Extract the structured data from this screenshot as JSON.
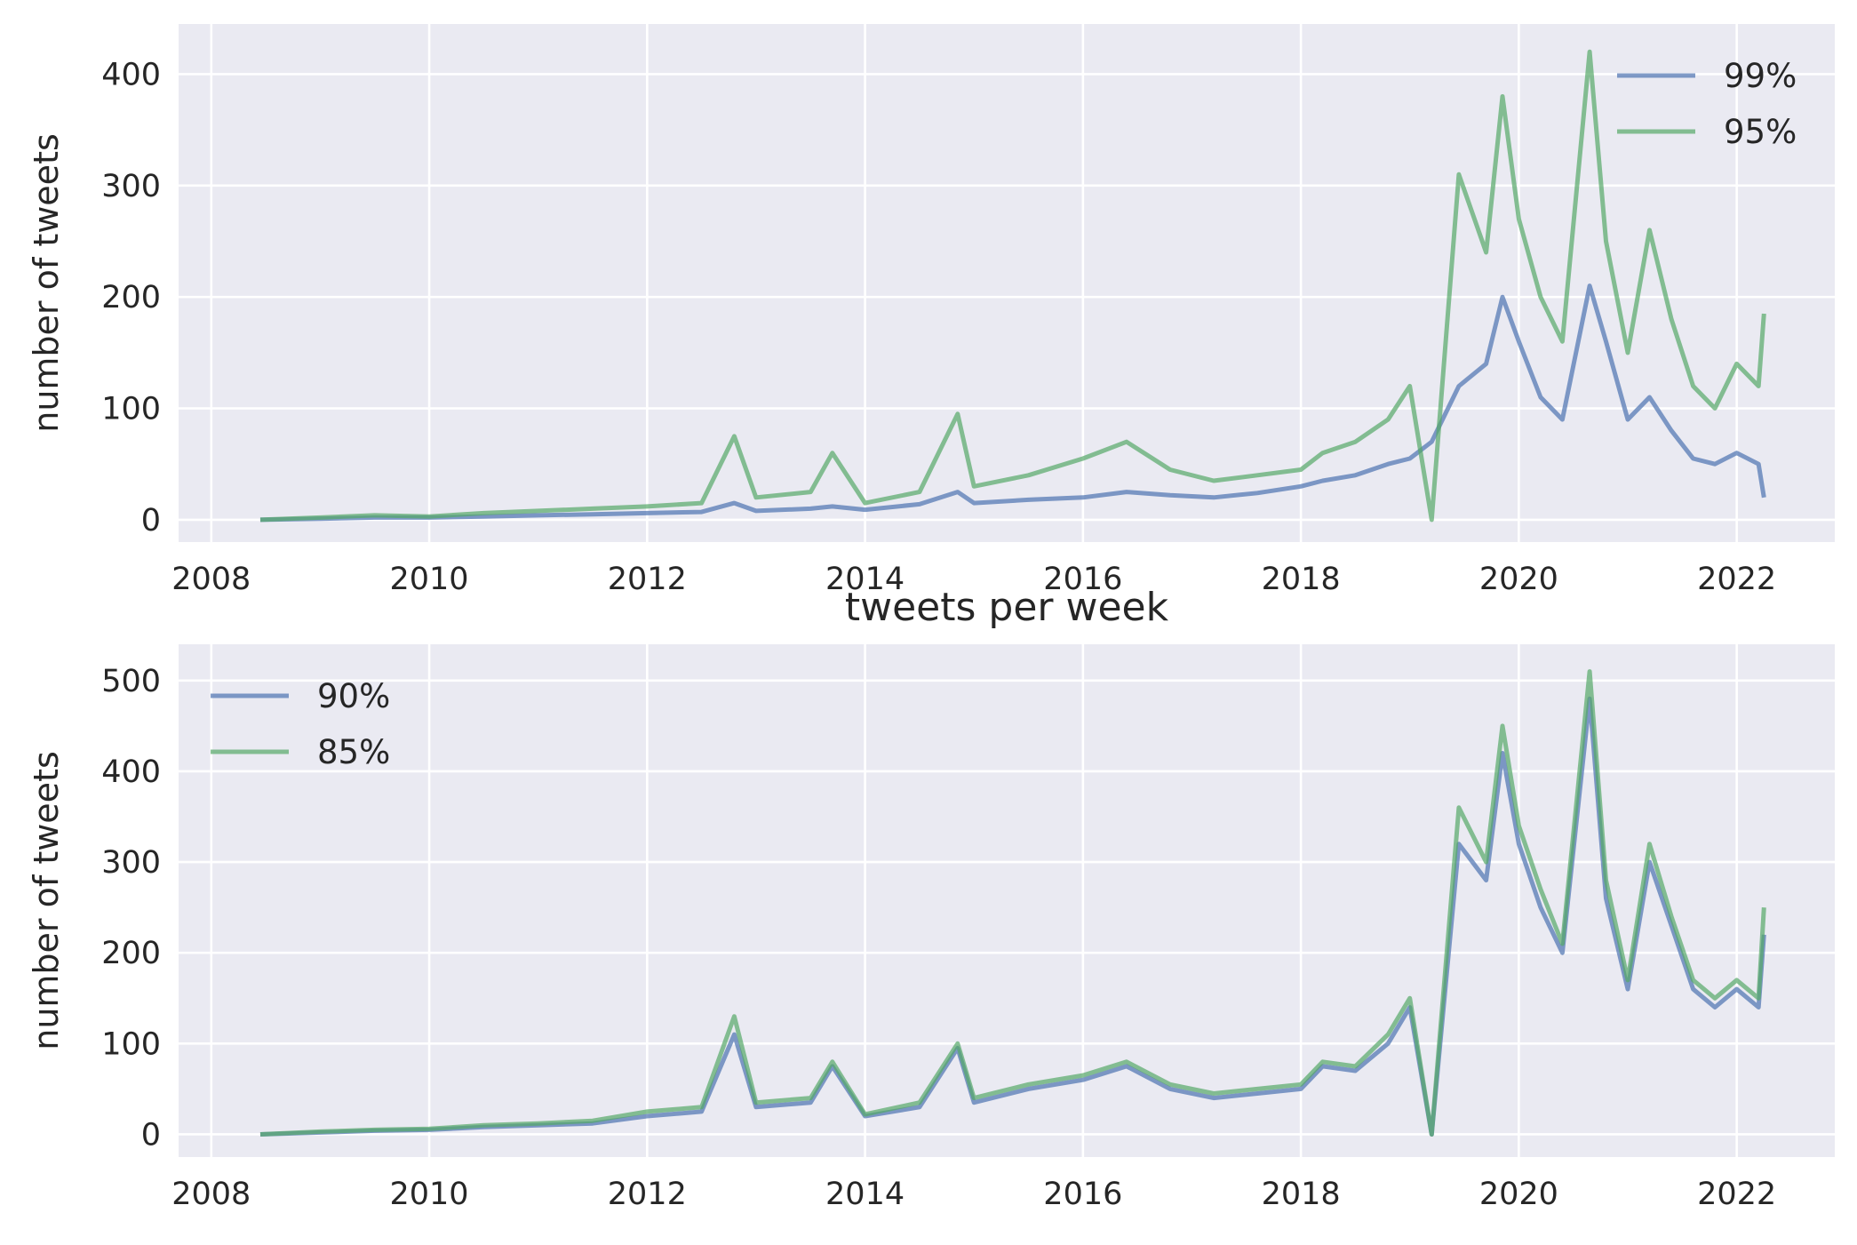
{
  "figure_title": "tweets per week",
  "colors": {
    "background": "#eaeaf2",
    "grid": "#ffffff",
    "series_blue": "#4c72b0",
    "series_green": "#55a868",
    "text": "#262626"
  },
  "chart_data": [
    {
      "type": "line",
      "xlabel": "",
      "ylabel": "number of tweets",
      "xlim": [
        2007.7,
        2022.9
      ],
      "ylim": [
        -20,
        445
      ],
      "xticks": [
        2008,
        2010,
        2012,
        2014,
        2016,
        2018,
        2020,
        2022
      ],
      "yticks": [
        0,
        100,
        200,
        300,
        400
      ],
      "grid": true,
      "legend_position": "upper right",
      "series": [
        {
          "name": "99%",
          "color": "#4c72b0",
          "x": [
            2008.45,
            2009.0,
            2009.5,
            2010.0,
            2010.5,
            2011.0,
            2011.5,
            2012.0,
            2012.5,
            2012.8,
            2013.0,
            2013.5,
            2013.7,
            2014.0,
            2014.5,
            2014.85,
            2015.0,
            2015.5,
            2016.0,
            2016.4,
            2016.8,
            2017.2,
            2017.6,
            2018.0,
            2018.2,
            2018.5,
            2018.8,
            2019.0,
            2019.2,
            2019.45,
            2019.7,
            2019.85,
            2020.0,
            2020.2,
            2020.4,
            2020.65,
            2020.8,
            2021.0,
            2021.2,
            2021.4,
            2021.6,
            2021.8,
            2022.0,
            2022.2,
            2022.25
          ],
          "values": [
            0,
            1,
            2,
            2,
            3,
            4,
            5,
            6,
            7,
            15,
            8,
            10,
            12,
            9,
            14,
            25,
            15,
            18,
            20,
            25,
            22,
            20,
            24,
            30,
            35,
            40,
            50,
            55,
            70,
            120,
            140,
            200,
            160,
            110,
            90,
            210,
            160,
            90,
            110,
            80,
            55,
            50,
            60,
            50,
            20
          ]
        },
        {
          "name": "95%",
          "color": "#55a868",
          "x": [
            2008.45,
            2009.0,
            2009.5,
            2010.0,
            2010.5,
            2011.0,
            2011.5,
            2012.0,
            2012.5,
            2012.8,
            2013.0,
            2013.5,
            2013.7,
            2014.0,
            2014.5,
            2014.85,
            2015.0,
            2015.5,
            2016.0,
            2016.4,
            2016.8,
            2017.2,
            2017.6,
            2018.0,
            2018.2,
            2018.5,
            2018.8,
            2019.0,
            2019.2,
            2019.45,
            2019.7,
            2019.85,
            2020.0,
            2020.2,
            2020.4,
            2020.65,
            2020.8,
            2021.0,
            2021.2,
            2021.4,
            2021.6,
            2021.8,
            2022.0,
            2022.2,
            2022.25
          ],
          "values": [
            0,
            2,
            4,
            3,
            6,
            8,
            10,
            12,
            15,
            75,
            20,
            25,
            60,
            15,
            25,
            95,
            30,
            40,
            55,
            70,
            45,
            35,
            40,
            45,
            60,
            70,
            90,
            120,
            0,
            310,
            240,
            380,
            270,
            200,
            160,
            420,
            250,
            150,
            260,
            180,
            120,
            100,
            140,
            120,
            185
          ]
        }
      ]
    },
    {
      "type": "line",
      "xlabel": "",
      "ylabel": "number of tweets",
      "xlim": [
        2007.7,
        2022.9
      ],
      "ylim": [
        -25,
        540
      ],
      "xticks": [
        2008,
        2010,
        2012,
        2014,
        2016,
        2018,
        2020,
        2022
      ],
      "yticks": [
        0,
        100,
        200,
        300,
        400,
        500
      ],
      "grid": true,
      "legend_position": "upper left",
      "series": [
        {
          "name": "90%",
          "color": "#4c72b0",
          "x": [
            2008.45,
            2009.0,
            2009.5,
            2010.0,
            2010.5,
            2011.0,
            2011.5,
            2012.0,
            2012.5,
            2012.8,
            2013.0,
            2013.5,
            2013.7,
            2014.0,
            2014.5,
            2014.85,
            2015.0,
            2015.5,
            2016.0,
            2016.4,
            2016.8,
            2017.2,
            2017.6,
            2018.0,
            2018.2,
            2018.5,
            2018.8,
            2019.0,
            2019.2,
            2019.45,
            2019.7,
            2019.85,
            2020.0,
            2020.2,
            2020.4,
            2020.65,
            2020.8,
            2021.0,
            2021.2,
            2021.4,
            2021.6,
            2021.8,
            2022.0,
            2022.2,
            2022.25
          ],
          "values": [
            0,
            2,
            4,
            5,
            8,
            10,
            12,
            20,
            25,
            110,
            30,
            35,
            75,
            20,
            30,
            95,
            35,
            50,
            60,
            75,
            50,
            40,
            45,
            50,
            75,
            70,
            100,
            140,
            0,
            320,
            280,
            420,
            320,
            250,
            200,
            480,
            260,
            160,
            300,
            230,
            160,
            140,
            160,
            140,
            220
          ]
        },
        {
          "name": "85%",
          "color": "#55a868",
          "x": [
            2008.45,
            2009.0,
            2009.5,
            2010.0,
            2010.5,
            2011.0,
            2011.5,
            2012.0,
            2012.5,
            2012.8,
            2013.0,
            2013.5,
            2013.7,
            2014.0,
            2014.5,
            2014.85,
            2015.0,
            2015.5,
            2016.0,
            2016.4,
            2016.8,
            2017.2,
            2017.6,
            2018.0,
            2018.2,
            2018.5,
            2018.8,
            2019.0,
            2019.2,
            2019.45,
            2019.7,
            2019.85,
            2020.0,
            2020.2,
            2020.4,
            2020.65,
            2020.8,
            2021.0,
            2021.2,
            2021.4,
            2021.6,
            2021.8,
            2022.0,
            2022.2,
            2022.25
          ],
          "values": [
            0,
            3,
            5,
            6,
            10,
            12,
            15,
            25,
            30,
            130,
            35,
            40,
            80,
            22,
            35,
            100,
            40,
            55,
            65,
            80,
            55,
            45,
            50,
            55,
            80,
            75,
            110,
            150,
            0,
            360,
            300,
            450,
            340,
            270,
            210,
            510,
            280,
            170,
            320,
            240,
            170,
            150,
            170,
            150,
            250
          ]
        }
      ]
    }
  ]
}
